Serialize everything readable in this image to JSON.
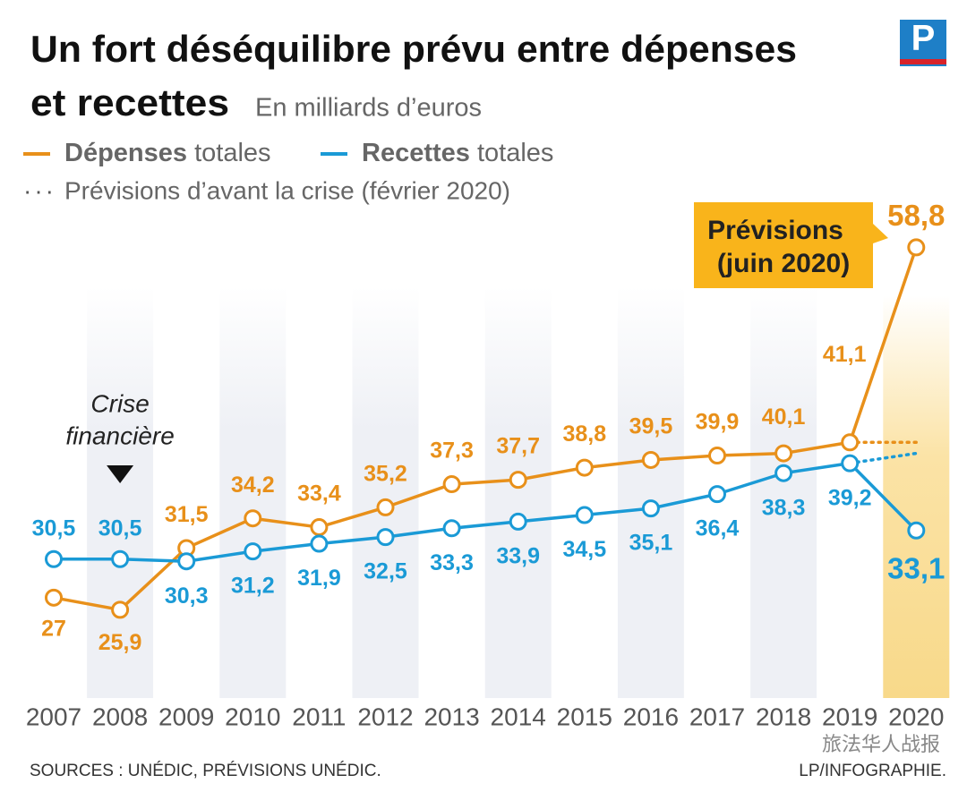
{
  "chart_data": {
    "type": "line",
    "title": [
      "Un fort déséquilibre prévu entre dépenses",
      "et recettes"
    ],
    "subtitle": "En milliards d’euros",
    "logo": "P",
    "categories": [
      "2007",
      "2008",
      "2009",
      "2010",
      "2011",
      "2012",
      "2013",
      "2014",
      "2015",
      "2016",
      "2017",
      "2018",
      "2019",
      "2020"
    ],
    "series": [
      {
        "name": "Dépenses totales",
        "color": "#e8901a",
        "values": [
          27,
          25.9,
          31.5,
          34.2,
          33.4,
          35.2,
          37.3,
          37.7,
          38.8,
          39.5,
          39.9,
          40.1,
          41.1,
          58.8
        ],
        "value_labels": [
          "27",
          "25,9",
          "31,5",
          "34,2",
          "33,4",
          "35,2",
          "37,3",
          "37,7",
          "38,8",
          "39,5",
          "39,9",
          "40,1",
          "41,1",
          "58,8"
        ]
      },
      {
        "name": "Recettes totales",
        "color": "#1a9ad6",
        "values": [
          30.5,
          30.5,
          30.3,
          31.2,
          31.9,
          32.5,
          33.3,
          33.9,
          34.5,
          35.1,
          36.4,
          38.3,
          39.2,
          33.1
        ],
        "value_labels": [
          "30,5",
          "30,5",
          "30,3",
          "31,2",
          "31,9",
          "32,5",
          "33,3",
          "33,9",
          "34,5",
          "35,1",
          "36,4",
          "38,3",
          "39,2",
          "33,1"
        ]
      }
    ],
    "forecast": {
      "name": "Prévisions d’avant la crise (février 2020)",
      "series": [
        {
          "values": [
            null,
            null,
            null,
            null,
            null,
            null,
            null,
            null,
            null,
            null,
            null,
            null,
            41.1,
            41.1
          ]
        },
        {
          "values": [
            null,
            null,
            null,
            null,
            null,
            null,
            null,
            null,
            null,
            null,
            null,
            null,
            39.2,
            40.1
          ]
        }
      ]
    },
    "crisis_label": [
      "Crise",
      "financière"
    ],
    "forecast_box": [
      "Prévisions",
      "(juin 2020)"
    ],
    "ylim": [
      20,
      62
    ],
    "sources": "SOURCES : UNÉDIC, PRÉVISIONS UNÉDIC.",
    "credit": "LP/INFOGRAPHIE.",
    "watermark": "旅法华人战报"
  }
}
